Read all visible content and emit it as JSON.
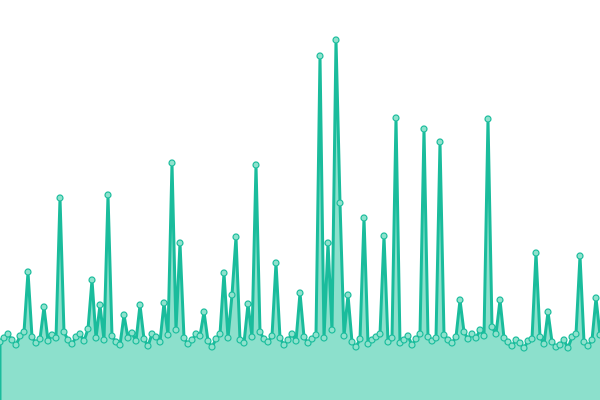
{
  "chart_data": {
    "type": "area",
    "title": "",
    "xlabel": "",
    "ylabel": "",
    "axes_visible": false,
    "grid": false,
    "legend": "none",
    "ylim": [
      0,
      400
    ],
    "colors": {
      "line": "#1abc9c",
      "fill": "#8ce0cc",
      "marker_fill": "#8fe2cd",
      "background": "#ffffff"
    },
    "values": [
      58,
      62,
      66,
      60,
      55,
      64,
      68,
      128,
      63,
      57,
      61,
      93,
      59,
      65,
      62,
      202,
      68,
      60,
      56,
      63,
      66,
      59,
      71,
      120,
      62,
      95,
      60,
      205,
      64,
      58,
      55,
      85,
      62,
      67,
      59,
      95,
      61,
      54,
      66,
      63,
      58,
      97,
      65,
      237,
      70,
      157,
      62,
      56,
      60,
      66,
      64,
      88,
      59,
      53,
      61,
      66,
      127,
      62,
      105,
      163,
      60,
      57,
      96,
      63,
      235,
      68,
      61,
      58,
      64,
      137,
      62,
      55,
      60,
      66,
      59,
      107,
      63,
      57,
      61,
      65,
      344,
      62,
      157,
      70,
      360,
      197,
      64,
      105,
      58,
      53,
      61,
      182,
      56,
      60,
      63,
      66,
      164,
      58,
      62,
      282,
      57,
      60,
      64,
      55,
      61,
      66,
      271,
      63,
      59,
      62,
      258,
      65,
      60,
      57,
      63,
      100,
      68,
      61,
      66,
      62,
      70,
      64,
      281,
      73,
      66,
      100,
      62,
      58,
      54,
      60,
      57,
      52,
      59,
      61,
      147,
      63,
      56,
      88,
      58,
      53,
      55,
      60,
      52,
      63,
      66,
      144,
      58,
      54,
      60,
      102,
      65
    ]
  }
}
